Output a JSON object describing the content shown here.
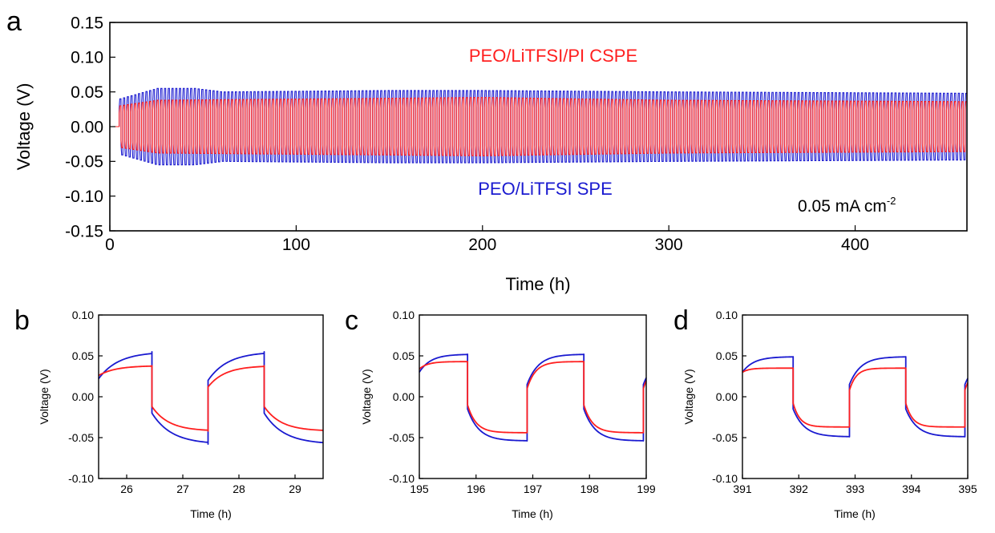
{
  "figure": {
    "colors": {
      "red": "#ff1f1f",
      "blue": "#1a1ad0",
      "axis": "#000000"
    },
    "panel_labels": [
      "a",
      "b",
      "c",
      "d"
    ]
  },
  "chart_data": [
    {
      "id": "a",
      "type": "line",
      "panel_label": "a",
      "xlabel": "Time (h)",
      "ylabel": "Voltage (V)",
      "xlim": [
        0,
        460
      ],
      "ylim": [
        -0.15,
        0.15
      ],
      "xticks": [
        0,
        100,
        200,
        300,
        400
      ],
      "xtick_labels": [
        "0",
        "100",
        "200",
        "300",
        "400"
      ],
      "yticks": [
        -0.15,
        -0.1,
        -0.05,
        0.0,
        0.05,
        0.1,
        0.15
      ],
      "ytick_labels": [
        "-0.15",
        "-0.10",
        "-0.05",
        "0.00",
        "0.05",
        "0.10",
        "0.15"
      ],
      "annotations": {
        "red_label": "PEO/LiTFSI/PI CSPE",
        "blue_label": "PEO/LiTFSI SPE",
        "current_density": "0.05 mA cm",
        "current_density_exp": "-2"
      },
      "series": [
        {
          "name": "PEO/LiTFSI SPE",
          "color": "blue",
          "cycle_period_h": 2,
          "start_h": 5,
          "amplitude_profile": [
            [
              5,
              0.04
            ],
            [
              25,
              0.055
            ],
            [
              45,
              0.055
            ],
            [
              60,
              0.05
            ],
            [
              150,
              0.052
            ],
            [
              200,
              0.052
            ],
            [
              300,
              0.05
            ],
            [
              460,
              0.048
            ]
          ]
        },
        {
          "name": "PEO/LiTFSI/PI CSPE",
          "color": "red",
          "cycle_period_h": 2,
          "start_h": 5,
          "amplitude_profile": [
            [
              5,
              0.03
            ],
            [
              25,
              0.038
            ],
            [
              200,
              0.042
            ],
            [
              300,
              0.038
            ],
            [
              460,
              0.036
            ]
          ]
        }
      ]
    },
    {
      "id": "b",
      "type": "line",
      "panel_label": "b",
      "xlabel": "Time (h)",
      "ylabel": "Voltage (V)",
      "xlim": [
        25.5,
        29.5
      ],
      "ylim": [
        -0.1,
        0.1
      ],
      "xticks": [
        26,
        27,
        28,
        29
      ],
      "xtick_labels": [
        "26",
        "27",
        "28",
        "29"
      ],
      "yticks": [
        -0.1,
        -0.05,
        0.0,
        0.05,
        0.1
      ],
      "ytick_labels": [
        "-0.10",
        "-0.05",
        "0.00",
        "0.05",
        "0.10"
      ],
      "series": [
        {
          "name": "PEO/LiTFSI SPE",
          "color": "blue",
          "switch_times": [
            26.45,
            27.45,
            28.45
          ],
          "start_value": 0.022,
          "end_value": -0.058,
          "plateau_pos": 0.055,
          "plateau_neg": -0.058,
          "jump": 0.02,
          "tau": 0.35,
          "first_positive": true
        },
        {
          "name": "PEO/LiTFSI/PI CSPE",
          "color": "red",
          "switch_times": [
            26.45,
            27.45,
            28.45
          ],
          "start_value": 0.026,
          "end_value": -0.042,
          "plateau_pos": 0.038,
          "plateau_neg": -0.042,
          "jump": 0.012,
          "tau": 0.3,
          "first_positive": true
        }
      ]
    },
    {
      "id": "c",
      "type": "line",
      "panel_label": "c",
      "xlabel": "Time (h)",
      "ylabel": "Voltage (V)",
      "xlim": [
        195,
        199
      ],
      "ylim": [
        -0.1,
        0.1
      ],
      "xticks": [
        195,
        196,
        197,
        198,
        199
      ],
      "xtick_labels": [
        "195",
        "196",
        "197",
        "198",
        "199"
      ],
      "yticks": [
        -0.1,
        -0.05,
        0.0,
        0.05,
        0.1
      ],
      "ytick_labels": [
        "-0.10",
        "-0.05",
        "0.00",
        "0.05",
        "0.10"
      ],
      "series": [
        {
          "name": "PEO/LiTFSI SPE",
          "color": "blue",
          "switch_times": [
            195.85,
            196.9,
            197.9,
            198.95
          ],
          "start_value": 0.03,
          "end_value": -0.054,
          "plateau_pos": 0.052,
          "plateau_neg": -0.054,
          "jump": 0.015,
          "tau": 0.2,
          "first_positive": true
        },
        {
          "name": "PEO/LiTFSI/PI CSPE",
          "color": "red",
          "switch_times": [
            195.85,
            196.9,
            197.9,
            198.95
          ],
          "start_value": 0.034,
          "end_value": -0.044,
          "plateau_pos": 0.043,
          "plateau_neg": -0.044,
          "jump": 0.01,
          "tau": 0.15,
          "first_positive": true
        }
      ]
    },
    {
      "id": "d",
      "type": "line",
      "panel_label": "d",
      "xlabel": "Time (h)",
      "ylabel": "Voltage (V)",
      "xlim": [
        391,
        395
      ],
      "ylim": [
        -0.1,
        0.1
      ],
      "xticks": [
        391,
        392,
        393,
        394,
        395
      ],
      "xtick_labels": [
        "391",
        "392",
        "393",
        "394",
        "395"
      ],
      "yticks": [
        -0.1,
        -0.05,
        0.0,
        0.05,
        0.1
      ],
      "ytick_labels": [
        "-0.10",
        "-0.05",
        "0.00",
        "0.05",
        "0.10"
      ],
      "series": [
        {
          "name": "PEO/LiTFSI SPE",
          "color": "blue",
          "switch_times": [
            391.9,
            392.9,
            393.9,
            394.95
          ],
          "start_value": 0.03,
          "end_value": -0.049,
          "plateau_pos": 0.049,
          "plateau_neg": -0.049,
          "jump": 0.015,
          "tau": 0.2,
          "first_positive": true
        },
        {
          "name": "PEO/LiTFSI/PI CSPE",
          "color": "red",
          "switch_times": [
            391.9,
            392.9,
            393.9,
            394.95
          ],
          "start_value": 0.03,
          "end_value": -0.037,
          "plateau_pos": 0.035,
          "plateau_neg": -0.037,
          "jump": 0.008,
          "tau": 0.12,
          "first_positive": true
        }
      ]
    }
  ]
}
